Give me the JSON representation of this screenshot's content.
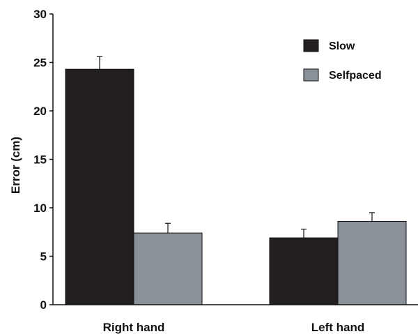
{
  "chart_data": {
    "type": "bar",
    "title": "",
    "xlabel": "",
    "ylabel": "Error (cm)",
    "ylim": [
      0,
      30
    ],
    "yticks": [
      0,
      5,
      10,
      15,
      20,
      25,
      30
    ],
    "categories": [
      "Right hand",
      "Left hand"
    ],
    "series": [
      {
        "name": "Slow",
        "values": [
          24.3,
          6.9
        ],
        "errors": [
          1.3,
          0.9
        ],
        "color": "#231f20"
      },
      {
        "name": "Selfpaced",
        "values": [
          7.4,
          8.6
        ],
        "errors": [
          1.0,
          0.9
        ],
        "color": "#8a9199"
      }
    ],
    "legend_position": "top-right",
    "grid": false
  }
}
